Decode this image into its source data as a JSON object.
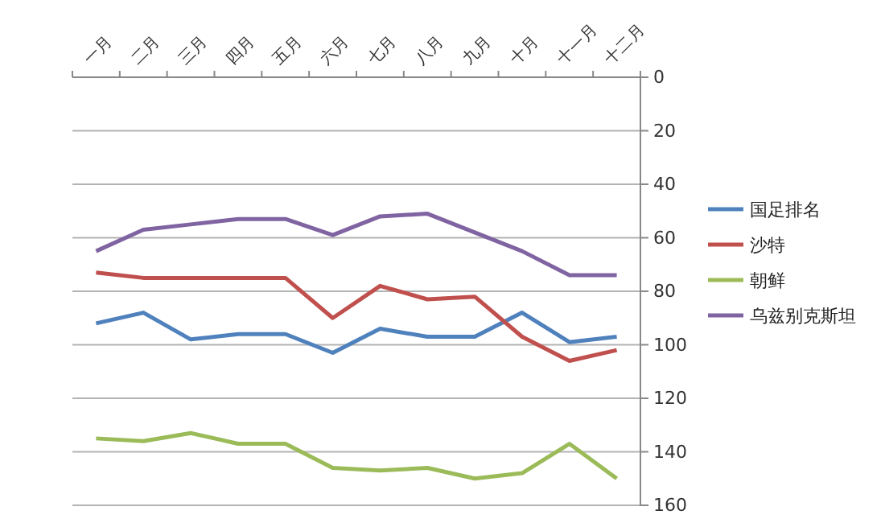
{
  "chart_data": {
    "type": "line",
    "categories": [
      "一月",
      "二月",
      "三月",
      "四月",
      "五月",
      "六月",
      "七月",
      "八月",
      "九月",
      "十月",
      "十一月",
      "十二月"
    ],
    "series": [
      {
        "name": "国足排名",
        "color": "#4f81bd",
        "values": [
          92,
          88,
          98,
          96,
          96,
          103,
          94,
          97,
          97,
          88,
          99,
          97
        ]
      },
      {
        "name": "沙特",
        "color": "#c0504d",
        "values": [
          73,
          75,
          75,
          75,
          75,
          90,
          78,
          83,
          82,
          97,
          106,
          102
        ]
      },
      {
        "name": "朝鲜",
        "color": "#9bbb59",
        "values": [
          135,
          136,
          133,
          137,
          137,
          146,
          147,
          146,
          150,
          148,
          137,
          150
        ]
      },
      {
        "name": "乌兹别克斯坦",
        "color": "#8064a2",
        "values": [
          65,
          57,
          55,
          53,
          53,
          59,
          52,
          51,
          58,
          65,
          74,
          74
        ]
      }
    ],
    "ylim": [
      160,
      0
    ],
    "yticks": [
      0,
      20,
      40,
      60,
      80,
      100,
      120,
      140,
      160
    ],
    "grid": "y",
    "legend": "right",
    "marker": "none",
    "line_style": "solid"
  }
}
